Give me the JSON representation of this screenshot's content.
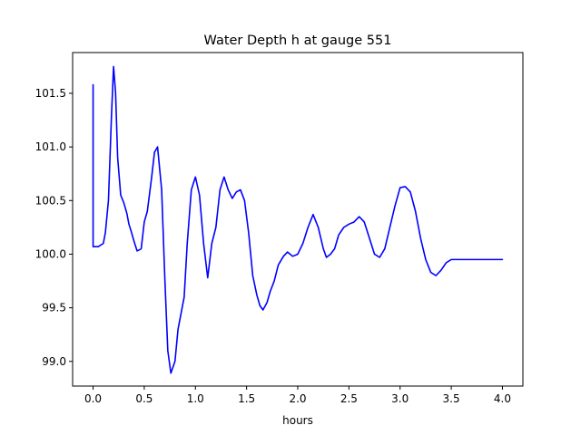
{
  "chart_data": {
    "type": "line",
    "title": "Water Depth h at gauge 551",
    "xlabel": "hours",
    "ylabel": "",
    "xlim": [
      -0.2,
      4.2
    ],
    "ylim": [
      98.77,
      101.88
    ],
    "xticks": [
      0.0,
      0.5,
      1.0,
      1.5,
      2.0,
      2.5,
      3.0,
      3.5,
      4.0
    ],
    "xtick_labels": [
      "0.0",
      "0.5",
      "1.0",
      "1.5",
      "2.0",
      "2.5",
      "3.0",
      "3.5",
      "4.0"
    ],
    "yticks": [
      99.0,
      99.5,
      100.0,
      100.5,
      101.0,
      101.5
    ],
    "ytick_labels": [
      "99.0",
      "99.5",
      "100.0",
      "100.5",
      "101.0",
      "101.5"
    ],
    "grid": false,
    "series": [
      {
        "color": "#0000ff",
        "x": [
          0.0,
          0.0,
          0.0,
          0.05,
          0.1,
          0.12,
          0.15,
          0.18,
          0.2,
          0.22,
          0.24,
          0.27,
          0.3,
          0.33,
          0.35,
          0.37,
          0.4,
          0.43,
          0.47,
          0.5,
          0.53,
          0.57,
          0.6,
          0.63,
          0.67,
          0.7,
          0.73,
          0.76,
          0.8,
          0.83,
          0.86,
          0.89,
          0.92,
          0.96,
          1.0,
          1.04,
          1.08,
          1.12,
          1.16,
          1.2,
          1.24,
          1.28,
          1.32,
          1.36,
          1.4,
          1.44,
          1.48,
          1.52,
          1.56,
          1.6,
          1.63,
          1.66,
          1.7,
          1.73,
          1.77,
          1.81,
          1.86,
          1.9,
          1.95,
          2.0,
          2.05,
          2.1,
          2.15,
          2.2,
          2.25,
          2.28,
          2.32,
          2.36,
          2.4,
          2.45,
          2.5,
          2.55,
          2.6,
          2.65,
          2.7,
          2.75,
          2.8,
          2.85,
          2.9,
          2.95,
          3.0,
          3.05,
          3.1,
          3.15,
          3.2,
          3.25,
          3.3,
          3.35,
          3.4,
          3.45,
          3.5,
          3.55,
          3.6,
          3.65,
          3.7,
          3.75,
          3.8,
          3.85,
          3.9,
          3.95,
          4.0
        ],
        "y": [
          101.58,
          100.5,
          100.07,
          100.07,
          100.1,
          100.2,
          100.5,
          101.3,
          101.75,
          101.5,
          100.9,
          100.55,
          100.48,
          100.38,
          100.28,
          100.22,
          100.12,
          100.03,
          100.05,
          100.3,
          100.4,
          100.7,
          100.95,
          101.0,
          100.6,
          99.8,
          99.1,
          98.89,
          99.0,
          99.3,
          99.45,
          99.6,
          100.1,
          100.6,
          100.72,
          100.55,
          100.1,
          99.78,
          100.1,
          100.25,
          100.6,
          100.72,
          100.6,
          100.52,
          100.58,
          100.6,
          100.5,
          100.2,
          99.8,
          99.62,
          99.52,
          99.48,
          99.55,
          99.65,
          99.75,
          99.9,
          99.98,
          100.02,
          99.98,
          100.0,
          100.1,
          100.25,
          100.37,
          100.25,
          100.05,
          99.97,
          100.0,
          100.05,
          100.18,
          100.25,
          100.28,
          100.3,
          100.35,
          100.3,
          100.15,
          100.0,
          99.97,
          100.05,
          100.25,
          100.45,
          100.62,
          100.63,
          100.58,
          100.4,
          100.15,
          99.95,
          99.83,
          99.8,
          99.85,
          99.92,
          99.95,
          99.95,
          99.95,
          99.95,
          99.95,
          99.95,
          99.95,
          99.95,
          99.95,
          99.95,
          99.95
        ]
      }
    ]
  }
}
